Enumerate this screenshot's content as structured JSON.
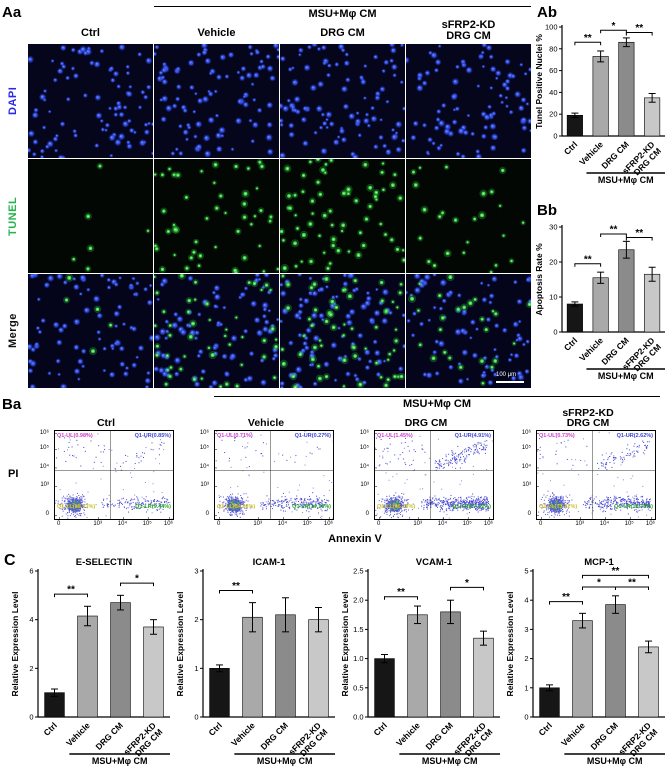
{
  "figure": {
    "panel_labels": {
      "Aa": "Aa",
      "Ab": "Ab",
      "Bb": "Bb",
      "Ba": "Ba",
      "C": "C"
    }
  },
  "microscopy": {
    "group_header": "MSU+Mφ CM",
    "col_labels": [
      "Ctrl",
      "Vehicle",
      "DRG CM",
      "sFRP2-KD\nDRG CM"
    ],
    "row_labels": [
      "DAPI",
      "TUNEL",
      "Merge"
    ],
    "row_label_colors": [
      "#2a2ae6",
      "#27b34f",
      "#111111"
    ],
    "scale_bar": "100 μm",
    "dapi_count": 80,
    "tunel_counts": [
      5,
      46,
      64,
      25
    ]
  },
  "flow": {
    "group_header": "MSU+Mφ CM",
    "xlabel": "Annexin V",
    "ylabel": "PI",
    "axis_ticks": [
      "0",
      "10³",
      "10⁴",
      "10⁵",
      "10⁶"
    ],
    "panels": [
      {
        "title": "Ctrl",
        "ul": "Q1-UL(0.98%)",
        "ur": "Q1-UR(0.85%)",
        "ll": "Q1-LL(88.73%)",
        "lr": "Q1-LR(9.44%)",
        "ul_pct": 0.98,
        "ur_pct": 0.85,
        "ll_pct": 88.73,
        "lr_pct": 9.44
      },
      {
        "title": "Vehicle",
        "ul": "Q1-UL(0.71%)",
        "ur": "Q1-UR(0.27%)",
        "ll": "Q1-LL(84.86%)",
        "lr": "Q1-LR(14.16%)",
        "ul_pct": 0.71,
        "ur_pct": 0.27,
        "ll_pct": 84.86,
        "lr_pct": 14.16
      },
      {
        "title": "DRG CM",
        "ul": "Q1-UL(1.45%)",
        "ur": "Q1-UR(4.91%)",
        "ll": "Q1-LL(66.23%)",
        "lr": "Q1-LR(27.41%)",
        "ul_pct": 1.45,
        "ur_pct": 4.91,
        "ll_pct": 66.23,
        "lr_pct": 27.41
      },
      {
        "title": "sFRP2-KD\nDRG CM",
        "ul": "Q1-UL(0.73%)",
        "ur": "Q1-UR(2.62%)",
        "ll": "Q1-LL(77.87%)",
        "lr": "Q1-LR(18.78%)",
        "ul_pct": 0.73,
        "ur_pct": 2.62,
        "ll_pct": 77.87,
        "lr_pct": 18.78
      }
    ]
  },
  "bar_colors": [
    "#161616",
    "#a9a9a9",
    "#8b8b8b",
    "#c8c8c8"
  ],
  "chart_data": [
    {
      "id": "Ab",
      "type": "bar",
      "title": "",
      "ylabel": "Tunel Positive Nuclei %",
      "categories": [
        "Ctrl",
        "Vehicle",
        "DRG CM",
        "sFRP2-KD\nDRG CM"
      ],
      "values": [
        19,
        73,
        86,
        35
      ],
      "errors": [
        2,
        5,
        4,
        4
      ],
      "ylim": [
        0,
        100
      ],
      "yticks": [
        0,
        20,
        40,
        60,
        80,
        100
      ],
      "ytick_labels": [
        "0",
        "20",
        "40",
        "60",
        "80",
        "100"
      ],
      "group_label": "MSU+Mφ CM",
      "significance": [
        {
          "a": 0,
          "b": 1,
          "label": "**",
          "y": 86
        },
        {
          "a": 1,
          "b": 2,
          "label": "*",
          "y": 97
        },
        {
          "a": 2,
          "b": 3,
          "label": "**",
          "y": 95
        }
      ]
    },
    {
      "id": "Bb",
      "type": "bar",
      "title": "",
      "ylabel": "Apoptosis Rate %",
      "categories": [
        "Ctrl",
        "Vehicle",
        "DRG CM",
        "sFRP2-KD\nDRG CM"
      ],
      "values": [
        8,
        15.5,
        23.5,
        16.5
      ],
      "errors": [
        0.6,
        1.6,
        2.4,
        2.0
      ],
      "ylim": [
        0,
        30
      ],
      "yticks": [
        0,
        10,
        20,
        30
      ],
      "ytick_labels": [
        "0",
        "10",
        "20",
        "30"
      ],
      "group_label": "MSU+Mφ CM",
      "significance": [
        {
          "a": 0,
          "b": 1,
          "label": "**",
          "y": 19.5
        },
        {
          "a": 1,
          "b": 2,
          "label": "**",
          "y": 28
        },
        {
          "a": 2,
          "b": 3,
          "label": "**",
          "y": 27
        }
      ]
    },
    {
      "id": "C1",
      "type": "bar",
      "title": "E-SELECTIN",
      "ylabel": "Relative Expression Level",
      "categories": [
        "Ctrl",
        "Vehicle",
        "DRG CM",
        "sFRP2-KD\nDRG CM"
      ],
      "values": [
        1.0,
        4.15,
        4.7,
        3.7
      ],
      "errors": [
        0.15,
        0.4,
        0.3,
        0.3
      ],
      "ylim": [
        0,
        6
      ],
      "yticks": [
        0,
        2,
        4,
        6
      ],
      "ytick_labels": [
        "0",
        "2",
        "4",
        "6"
      ],
      "group_label": "MSU+Mφ CM",
      "significance": [
        {
          "a": 0,
          "b": 1,
          "label": "**",
          "y": 5.05
        },
        {
          "a": 2,
          "b": 3,
          "label": "*",
          "y": 5.5
        }
      ]
    },
    {
      "id": "C2",
      "type": "bar",
      "title": "ICAM-1",
      "ylabel": "Relative Expression Level",
      "categories": [
        "Ctrl",
        "Vehicle",
        "DRG CM",
        "sFRP2-KD\nDRG CM"
      ],
      "values": [
        1.0,
        2.05,
        2.1,
        2.0
      ],
      "errors": [
        0.07,
        0.3,
        0.35,
        0.25
      ],
      "ylim": [
        0,
        3
      ],
      "yticks": [
        0,
        1,
        2,
        3
      ],
      "ytick_labels": [
        "0",
        "1",
        "2",
        "3"
      ],
      "group_label": "MSU+Mφ CM",
      "significance": [
        {
          "a": 0,
          "b": 1,
          "label": "**",
          "y": 2.6
        }
      ]
    },
    {
      "id": "C3",
      "type": "bar",
      "title": "VCAM-1",
      "ylabel": "Relative Expression Level",
      "categories": [
        "Ctrl",
        "Vehicle",
        "DRG CM",
        "sFRP2-KD\nDRG CM"
      ],
      "values": [
        1.0,
        1.75,
        1.8,
        1.35
      ],
      "errors": [
        0.07,
        0.15,
        0.2,
        0.12
      ],
      "ylim": [
        0,
        2.5
      ],
      "yticks": [
        0,
        0.5,
        1.0,
        1.5,
        2.0,
        2.5
      ],
      "ytick_labels": [
        "0.0",
        "0.5",
        "1.0",
        "1.5",
        "2.0",
        "2.5"
      ],
      "group_label": "MSU+Mφ CM",
      "significance": [
        {
          "a": 0,
          "b": 1,
          "label": "**",
          "y": 2.06
        },
        {
          "a": 2,
          "b": 3,
          "label": "*",
          "y": 2.22
        }
      ]
    },
    {
      "id": "C4",
      "type": "bar",
      "title": "MCP-1",
      "ylabel": "Relative Expression Level",
      "categories": [
        "Ctrl",
        "Vehicle",
        "DRG CM",
        "sFRP2-KD\nDRG CM"
      ],
      "values": [
        1.0,
        3.3,
        3.85,
        2.4
      ],
      "errors": [
        0.1,
        0.25,
        0.3,
        0.2
      ],
      "ylim": [
        0,
        5
      ],
      "yticks": [
        0,
        1,
        2,
        3,
        4,
        5
      ],
      "ytick_labels": [
        "0",
        "1",
        "2",
        "3",
        "4",
        "5"
      ],
      "group_label": "MSU+Mφ CM",
      "significance": [
        {
          "a": 0,
          "b": 1,
          "label": "**",
          "y": 3.95
        },
        {
          "a": 1,
          "b": 2,
          "label": "*",
          "y": 4.45
        },
        {
          "a": 2,
          "b": 3,
          "label": "**",
          "y": 4.45
        },
        {
          "a": 1,
          "b": 3,
          "label": "**",
          "y": 4.85
        }
      ]
    }
  ]
}
